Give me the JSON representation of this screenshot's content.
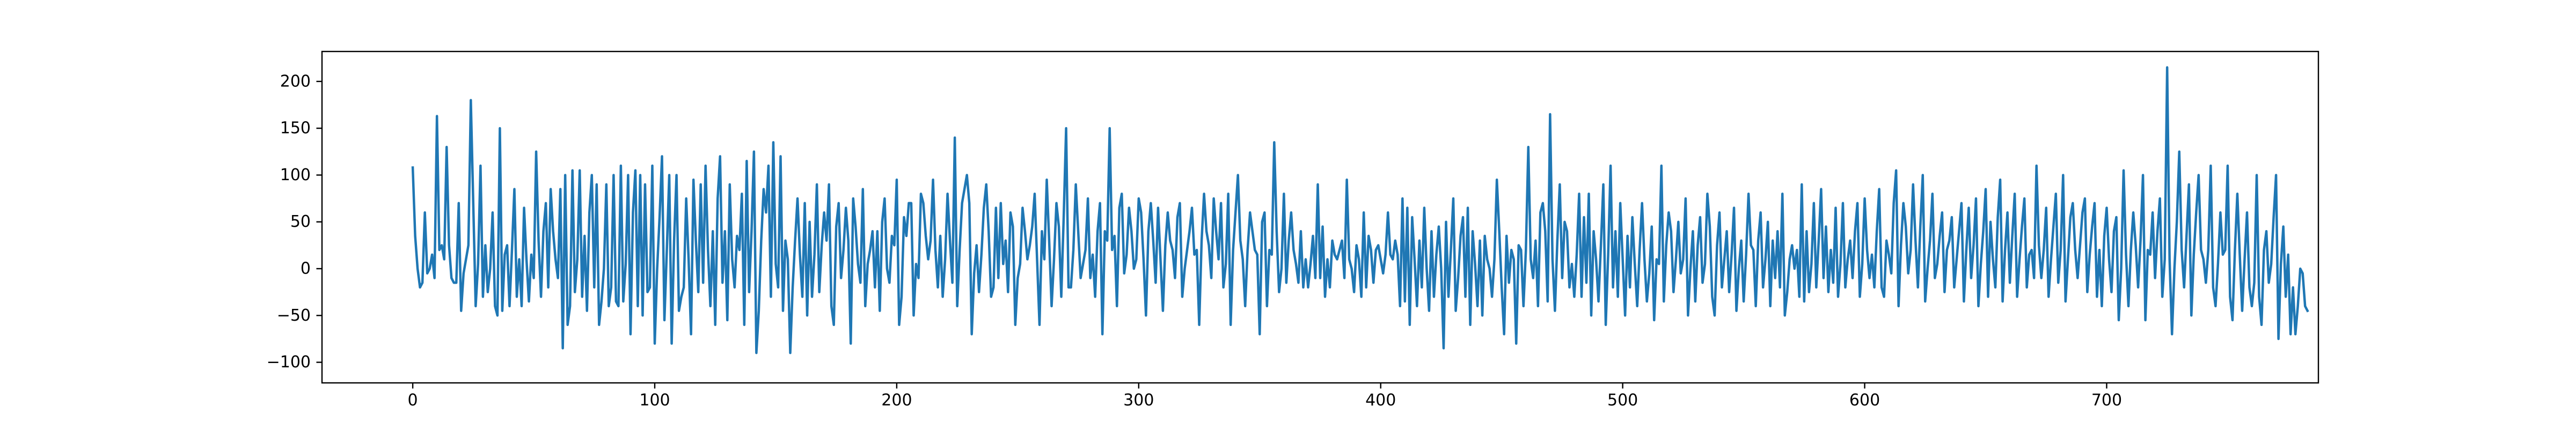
{
  "chart_data": {
    "type": "line",
    "title": "",
    "xlabel": "",
    "ylabel": "",
    "xlim": [
      -37.5,
      787.5
    ],
    "ylim": [
      -122,
      232
    ],
    "x_ticks": [
      0,
      100,
      200,
      300,
      400,
      500,
      600,
      700
    ],
    "y_ticks": [
      -100,
      -50,
      0,
      50,
      100,
      150,
      200
    ],
    "x_tick_labels": [
      "0",
      "100",
      "200",
      "300",
      "400",
      "500",
      "600",
      "700"
    ],
    "y_tick_labels": [
      "−100",
      "−50",
      "0",
      "50",
      "100",
      "150",
      "200"
    ],
    "grid": false,
    "legend": "none",
    "line_color": "#1f77b4",
    "series": [
      {
        "x_start": 0,
        "x_step": 1,
        "values": [
          108,
          35,
          0,
          -20,
          -15,
          60,
          -5,
          0,
          15,
          -10,
          163,
          20,
          25,
          10,
          130,
          25,
          -10,
          -15,
          -15,
          70,
          -45,
          -5,
          10,
          25,
          180,
          70,
          -40,
          5,
          110,
          -30,
          25,
          -25,
          0,
          60,
          -40,
          -50,
          150,
          -45,
          15,
          25,
          -40,
          20,
          85,
          -30,
          10,
          -40,
          65,
          10,
          -35,
          15,
          -10,
          125,
          30,
          -30,
          40,
          70,
          -20,
          85,
          40,
          10,
          -10,
          85,
          -85,
          100,
          -60,
          -40,
          105,
          -25,
          10,
          105,
          -30,
          35,
          -45,
          60,
          100,
          -20,
          90,
          -60,
          -35,
          0,
          90,
          -40,
          -20,
          100,
          -35,
          -40,
          110,
          -35,
          5,
          100,
          -70,
          60,
          105,
          -40,
          100,
          -50,
          90,
          -25,
          -20,
          110,
          -80,
          0,
          55,
          120,
          -55,
          20,
          100,
          -80,
          30,
          100,
          -45,
          -30,
          -20,
          75,
          10,
          -70,
          95,
          30,
          -25,
          90,
          -15,
          110,
          20,
          -40,
          40,
          -60,
          75,
          120,
          -15,
          40,
          -55,
          90,
          10,
          -20,
          35,
          20,
          80,
          -60,
          115,
          -25,
          40,
          125,
          -90,
          -45,
          30,
          85,
          60,
          110,
          -30,
          135,
          5,
          -20,
          120,
          -45,
          30,
          10,
          -90,
          -20,
          30,
          75,
          15,
          -30,
          70,
          -50,
          50,
          -30,
          15,
          90,
          -25,
          25,
          60,
          30,
          90,
          -40,
          -60,
          45,
          70,
          -10,
          20,
          65,
          30,
          -80,
          75,
          45,
          5,
          -15,
          85,
          -40,
          5,
          20,
          40,
          -20,
          40,
          -45,
          50,
          75,
          0,
          -15,
          35,
          25,
          95,
          -60,
          -30,
          55,
          35,
          70,
          70,
          -50,
          5,
          -10,
          80,
          70,
          35,
          10,
          30,
          95,
          20,
          -20,
          35,
          -30,
          10,
          80,
          30,
          -15,
          140,
          -40,
          20,
          70,
          85,
          100,
          70,
          -70,
          -5,
          25,
          -25,
          15,
          65,
          90,
          40,
          -30,
          -20,
          65,
          -10,
          70,
          5,
          30,
          -25,
          60,
          45,
          -60,
          -10,
          5,
          65,
          40,
          10,
          25,
          45,
          80,
          10,
          -60,
          40,
          10,
          95,
          30,
          -40,
          10,
          70,
          45,
          -30,
          55,
          150,
          -20,
          -20,
          20,
          90,
          40,
          -10,
          5,
          20,
          75,
          -10,
          15,
          -30,
          40,
          70,
          -70,
          40,
          30,
          150,
          20,
          35,
          -40,
          65,
          80,
          -5,
          15,
          65,
          40,
          0,
          10,
          75,
          60,
          10,
          -50,
          40,
          70,
          30,
          -15,
          65,
          10,
          -45,
          25,
          60,
          30,
          20,
          -10,
          55,
          70,
          -30,
          0,
          20,
          40,
          65,
          15,
          20,
          -60,
          30,
          80,
          40,
          25,
          -10,
          75,
          40,
          10,
          70,
          -20,
          5,
          80,
          -60,
          20,
          60,
          100,
          30,
          10,
          -40,
          20,
          60,
          40,
          20,
          15,
          -70,
          50,
          60,
          -40,
          20,
          15,
          135,
          40,
          -25,
          0,
          80,
          -15,
          30,
          60,
          20,
          5,
          -15,
          40,
          -20,
          10,
          -20,
          5,
          35,
          -10,
          90,
          -10,
          45,
          -30,
          10,
          -20,
          30,
          15,
          10,
          20,
          30,
          -10,
          95,
          10,
          0,
          -25,
          25,
          10,
          -30,
          60,
          -20,
          35,
          20,
          -15,
          20,
          25,
          10,
          -5,
          15,
          60,
          15,
          10,
          30,
          15,
          -40,
          75,
          -35,
          65,
          -60,
          55,
          10,
          -40,
          30,
          -20,
          65,
          0,
          -45,
          40,
          -30,
          15,
          45,
          0,
          -85,
          50,
          -30,
          20,
          75,
          -45,
          -10,
          35,
          55,
          -30,
          65,
          -60,
          40,
          5,
          -40,
          30,
          -50,
          35,
          10,
          0,
          -30,
          10,
          95,
          40,
          -20,
          -70,
          35,
          -15,
          20,
          10,
          -80,
          25,
          20,
          -40,
          20,
          130,
          10,
          -10,
          30,
          -40,
          60,
          70,
          40,
          -35,
          165,
          10,
          -45,
          30,
          90,
          -10,
          50,
          40,
          -20,
          5,
          -30,
          15,
          80,
          -30,
          55,
          -15,
          80,
          -50,
          40,
          10,
          -35,
          25,
          90,
          -60,
          15,
          110,
          -20,
          40,
          -30,
          70,
          10,
          -50,
          35,
          -20,
          55,
          5,
          -40,
          20,
          70,
          10,
          -35,
          -5,
          45,
          -55,
          10,
          5,
          110,
          -35,
          25,
          60,
          40,
          -25,
          10,
          50,
          -5,
          10,
          75,
          -50,
          0,
          40,
          -35,
          25,
          55,
          -15,
          5,
          80,
          45,
          -30,
          -50,
          25,
          60,
          -20,
          10,
          40,
          -25,
          15,
          65,
          -45,
          0,
          30,
          -35,
          15,
          80,
          25,
          20,
          -40,
          30,
          60,
          -20,
          10,
          50,
          -40,
          30,
          -10,
          40,
          -20,
          80,
          -50,
          -25,
          10,
          25,
          0,
          20,
          -30,
          90,
          -35,
          40,
          -25,
          5,
          70,
          -20,
          30,
          85,
          -10,
          45,
          -25,
          20,
          -15,
          65,
          -30,
          5,
          70,
          -20,
          10,
          30,
          -10,
          40,
          70,
          -30,
          5,
          75,
          20,
          -10,
          15,
          -20,
          40,
          85,
          -20,
          -30,
          30,
          15,
          -5,
          70,
          105,
          -40,
          25,
          70,
          45,
          -5,
          20,
          90,
          30,
          -20,
          45,
          100,
          -35,
          0,
          30,
          80,
          -10,
          5,
          35,
          60,
          -25,
          20,
          30,
          55,
          -20,
          10,
          40,
          70,
          -35,
          20,
          65,
          -10,
          25,
          75,
          -40,
          5,
          40,
          85,
          -30,
          50,
          10,
          -20,
          55,
          95,
          -35,
          20,
          60,
          -15,
          35,
          80,
          -30,
          10,
          45,
          75,
          -20,
          15,
          20,
          -10,
          110,
          25,
          -10,
          20,
          65,
          -30,
          10,
          45,
          80,
          -15,
          20,
          100,
          -35,
          10,
          55,
          70,
          20,
          -10,
          25,
          60,
          75,
          -25,
          15,
          45,
          70,
          -30,
          20,
          -40,
          35,
          65,
          10,
          -25,
          40,
          55,
          -55,
          0,
          105,
          15,
          -40,
          20,
          60,
          25,
          -20,
          30,
          100,
          -55,
          20,
          15,
          60,
          -10,
          40,
          75,
          -30,
          10,
          215,
          10,
          -70,
          0,
          50,
          125,
          20,
          -20,
          35,
          90,
          -50,
          15,
          60,
          100,
          20,
          10,
          -15,
          20,
          110,
          -20,
          -40,
          5,
          60,
          15,
          20,
          110,
          -30,
          -55,
          20,
          80,
          15,
          -45,
          10,
          60,
          -20,
          -40,
          -15,
          100,
          -30,
          -60,
          20,
          40,
          -15,
          5,
          55,
          100,
          -75,
          5,
          45,
          -30,
          15,
          -70,
          -20,
          -70,
          -40,
          0,
          -5,
          -40,
          -45
        ]
      }
    ]
  }
}
